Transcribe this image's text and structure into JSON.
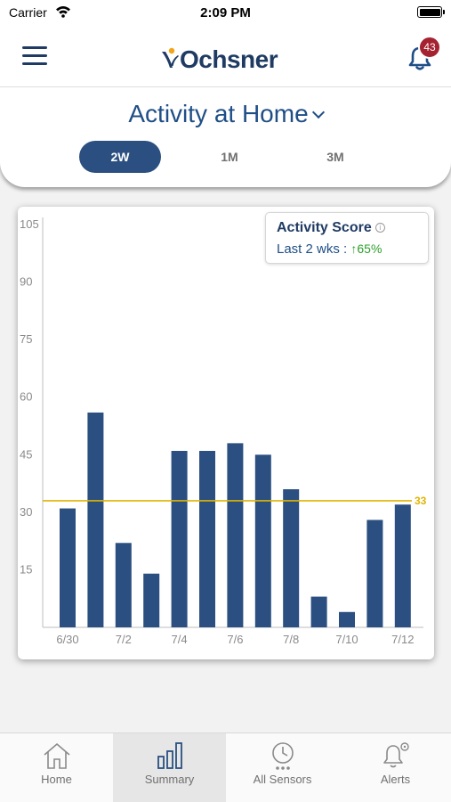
{
  "status_bar": {
    "carrier": "Carrier",
    "time": "2:09 PM"
  },
  "header": {
    "logo_text": "Ochsner",
    "notification_count": "43"
  },
  "page": {
    "title": "Activity at Home"
  },
  "range_tabs": [
    {
      "label": "2W",
      "active": true
    },
    {
      "label": "1M",
      "active": false
    },
    {
      "label": "3M",
      "active": false
    }
  ],
  "score": {
    "title": "Activity Score",
    "info": "i",
    "period_label": "Last 2 wks :",
    "change": "↑65%"
  },
  "chart_data": {
    "type": "bar",
    "categories": [
      "6/30",
      "7/1",
      "7/2",
      "7/3",
      "7/4",
      "7/5",
      "7/6",
      "7/7",
      "7/8",
      "7/9",
      "7/10",
      "7/11",
      "7/12"
    ],
    "x_tick_labels": [
      "6/30",
      "7/2",
      "7/4",
      "7/6",
      "7/8",
      "7/10",
      "7/12"
    ],
    "values": [
      31,
      56,
      22,
      14,
      46,
      46,
      48,
      45,
      36,
      8,
      4,
      28,
      32
    ],
    "ylim": [
      0,
      105
    ],
    "y_ticks": [
      15,
      30,
      45,
      60,
      75,
      90,
      105
    ],
    "reference_line": {
      "value": 33,
      "label": "33",
      "color": "#e0b400"
    },
    "bar_color": "#2a4f80",
    "grid": false
  },
  "tab_bar": {
    "items": [
      {
        "label": "Home",
        "active": false
      },
      {
        "label": "Summary",
        "active": true
      },
      {
        "label": "All Sensors",
        "active": false
      },
      {
        "label": "Alerts",
        "active": false
      }
    ]
  }
}
